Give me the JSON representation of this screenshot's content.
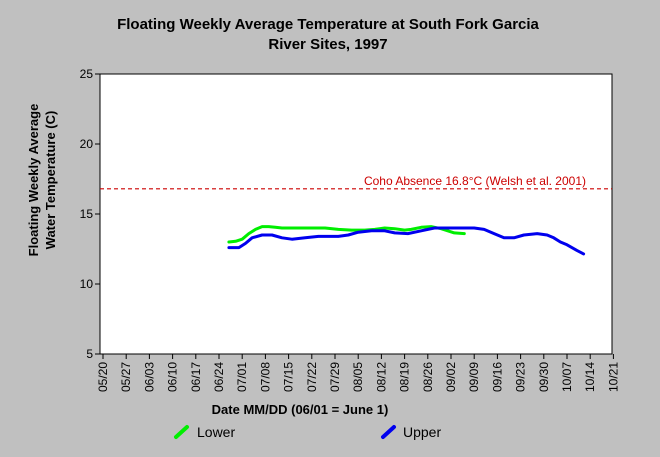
{
  "chart_data": {
    "type": "line",
    "title_lines": [
      "Floating Weekly Average Temperature at South Fork Garcia",
      "River Sites, 1997"
    ],
    "xlabel": "Date MM/DD (06/01 = June 1)",
    "ylabel_lines": [
      "Floating Weekly Average",
      "Water Temperature (C)"
    ],
    "ylim": [
      5,
      25
    ],
    "yticks": [
      "5",
      "10",
      "15",
      "20",
      "25"
    ],
    "xticks": [
      "05/20",
      "05/27",
      "06/03",
      "06/10",
      "06/17",
      "06/24",
      "07/01",
      "07/08",
      "07/15",
      "07/22",
      "07/29",
      "08/05",
      "08/12",
      "08/19",
      "08/26",
      "09/02",
      "09/09",
      "09/16",
      "09/23",
      "09/30",
      "10/07",
      "10/14",
      "10/21"
    ],
    "reference_line": {
      "value": 16.8,
      "label": "Coho Absence 16.8°C (Welsh et al. 2001)",
      "color": "#cc0000"
    },
    "grid": false,
    "legend_position": "bottom",
    "series": [
      {
        "name": "Lower",
        "color": "#00ee00",
        "points": [
          [
            "06/27",
            13.0
          ],
          [
            "06/29",
            13.05
          ],
          [
            "07/01",
            13.2
          ],
          [
            "07/03",
            13.6
          ],
          [
            "07/05",
            13.9
          ],
          [
            "07/07",
            14.1
          ],
          [
            "07/09",
            14.1
          ],
          [
            "07/11",
            14.05
          ],
          [
            "07/13",
            14.0
          ],
          [
            "07/15",
            14.0
          ],
          [
            "07/18",
            14.0
          ],
          [
            "07/22",
            14.0
          ],
          [
            "07/26",
            14.0
          ],
          [
            "07/30",
            13.9
          ],
          [
            "08/03",
            13.85
          ],
          [
            "08/07",
            13.85
          ],
          [
            "08/10",
            13.9
          ],
          [
            "08/13",
            14.0
          ],
          [
            "08/16",
            13.95
          ],
          [
            "08/19",
            13.85
          ],
          [
            "08/21",
            13.9
          ],
          [
            "08/24",
            14.05
          ],
          [
            "08/27",
            14.1
          ],
          [
            "08/30",
            13.95
          ],
          [
            "09/01",
            13.8
          ],
          [
            "09/03",
            13.65
          ],
          [
            "09/06",
            13.6
          ]
        ]
      },
      {
        "name": "Upper",
        "color": "#0000ee",
        "points": [
          [
            "06/27",
            12.6
          ],
          [
            "06/30",
            12.6
          ],
          [
            "07/02",
            12.9
          ],
          [
            "07/04",
            13.3
          ],
          [
            "07/07",
            13.5
          ],
          [
            "07/10",
            13.5
          ],
          [
            "07/13",
            13.3
          ],
          [
            "07/16",
            13.2
          ],
          [
            "07/20",
            13.3
          ],
          [
            "07/24",
            13.4
          ],
          [
            "07/30",
            13.4
          ],
          [
            "08/02",
            13.5
          ],
          [
            "08/05",
            13.7
          ],
          [
            "08/09",
            13.8
          ],
          [
            "08/13",
            13.8
          ],
          [
            "08/16",
            13.65
          ],
          [
            "08/20",
            13.6
          ],
          [
            "08/24",
            13.8
          ],
          [
            "08/28",
            14.0
          ],
          [
            "09/01",
            14.0
          ],
          [
            "09/05",
            14.0
          ],
          [
            "09/09",
            14.0
          ],
          [
            "09/12",
            13.9
          ],
          [
            "09/15",
            13.6
          ],
          [
            "09/18",
            13.3
          ],
          [
            "09/21",
            13.3
          ],
          [
            "09/24",
            13.5
          ],
          [
            "09/28",
            13.6
          ],
          [
            "10/01",
            13.5
          ],
          [
            "10/03",
            13.3
          ],
          [
            "10/05",
            13.0
          ],
          [
            "10/07",
            12.8
          ],
          [
            "10/10",
            12.4
          ],
          [
            "10/12",
            12.15
          ]
        ]
      }
    ]
  }
}
